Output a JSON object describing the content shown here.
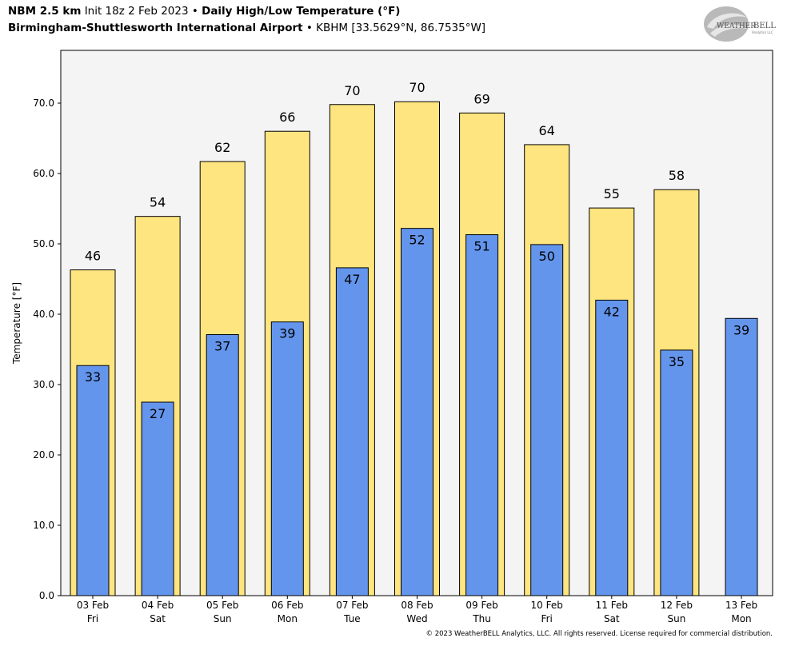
{
  "header": {
    "model": "NBM 2.5 km",
    "init": "Init 18z 2 Feb 2023",
    "bullet": "•",
    "product": "Daily High/Low Temperature (°F)",
    "station_name": "Birmingham-Shuttlesworth International Airport",
    "station_info": "KBHM [33.5629°N, 86.7535°W]"
  },
  "logo": {
    "text_a": "WEATHER",
    "text_b": "BELL",
    "sub": "Analytics LLC"
  },
  "footer": "© 2023 WeatherBELL Analytics, LLC. All rights reserved. License required for commercial distribution.",
  "colors": {
    "high": "#FFE57F",
    "low": "#6495ED",
    "plot_bg": "#F4F4F4",
    "edge": "#000000"
  },
  "chart_data": {
    "type": "bar",
    "ylabel": "Temperature [°F]",
    "ylim": [
      0,
      77.5
    ],
    "yticks": [
      "0.0",
      "10.0",
      "20.0",
      "30.0",
      "40.0",
      "50.0",
      "60.0",
      "70.0"
    ],
    "categories": [
      [
        "03 Feb",
        "Fri"
      ],
      [
        "04 Feb",
        "Sat"
      ],
      [
        "05 Feb",
        "Sun"
      ],
      [
        "06 Feb",
        "Mon"
      ],
      [
        "07 Feb",
        "Tue"
      ],
      [
        "08 Feb",
        "Wed"
      ],
      [
        "09 Feb",
        "Thu"
      ],
      [
        "10 Feb",
        "Fri"
      ],
      [
        "11 Feb",
        "Sat"
      ],
      [
        "12 Feb",
        "Sun"
      ],
      [
        "13 Feb",
        "Mon"
      ]
    ],
    "series": [
      {
        "name": "High",
        "values": [
          46.3,
          53.9,
          61.7,
          66.0,
          69.8,
          70.2,
          68.6,
          64.1,
          55.1,
          57.7,
          null
        ],
        "labels": [
          "46",
          "54",
          "62",
          "66",
          "70",
          "70",
          "69",
          "64",
          "55",
          "58",
          ""
        ]
      },
      {
        "name": "Low",
        "values": [
          32.7,
          27.5,
          37.1,
          38.9,
          46.6,
          52.2,
          51.3,
          49.9,
          42.0,
          34.9,
          39.4
        ],
        "labels": [
          "33",
          "27",
          "37",
          "39",
          "47",
          "52",
          "51",
          "50",
          "42",
          "35",
          "39"
        ]
      }
    ],
    "grid": false,
    "legend": "none"
  }
}
